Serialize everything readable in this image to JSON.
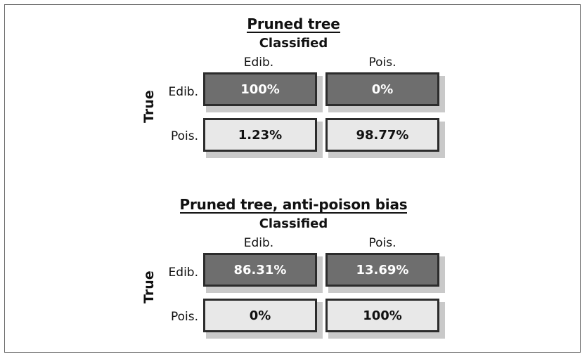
{
  "panels": [
    {
      "title": "Pruned tree",
      "subtitle": "Classified",
      "axis_true": "True",
      "columns": [
        "Edib.",
        "Pois."
      ],
      "rows": [
        "Edib.",
        "Pois."
      ],
      "cells": [
        [
          "100%",
          "0%"
        ],
        [
          "1.23%",
          "98.77%"
        ]
      ]
    },
    {
      "title": "Pruned tree, anti-poison bias",
      "subtitle": "Classified",
      "axis_true": "True",
      "columns": [
        "Edib.",
        "Pois."
      ],
      "rows": [
        "Edib.",
        "Pois."
      ],
      "cells": [
        [
          "86.31%",
          "13.69%"
        ],
        [
          "0%",
          "100%"
        ]
      ]
    }
  ],
  "colors": {
    "correct_fill": "#6e6e6e",
    "other_fill": "#e8e8e8",
    "border": "#2c2c2c",
    "shadow": "#c9c9c9"
  }
}
